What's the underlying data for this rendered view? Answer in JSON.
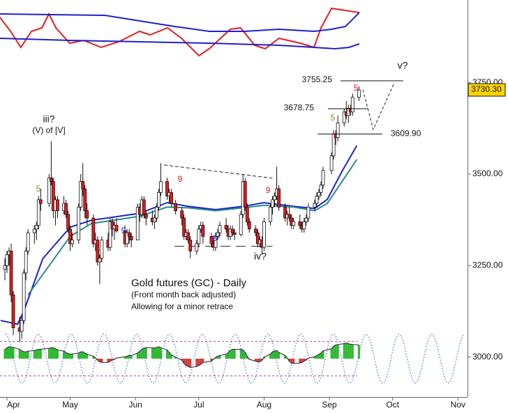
{
  "chart_data": {
    "type": "candlestick",
    "title": "Gold futures (GC) - Daily",
    "subtitle": [
      "(Front month back adjusted)",
      "Allowing for a minor retrace"
    ],
    "xlim": [
      -3.31,
      218.54
    ],
    "ylim": [
      2891,
      3976
    ],
    "xticks": [
      {
        "value": 0,
        "label": "Apr"
      },
      {
        "value": 30,
        "label": "May"
      },
      {
        "value": 61,
        "label": "Jun"
      },
      {
        "value": 91,
        "label": "Jul"
      },
      {
        "value": 122,
        "label": "Aug"
      },
      {
        "value": 153,
        "label": "Sep"
      },
      {
        "value": 183,
        "label": "Oct"
      },
      {
        "value": 214,
        "label": "Nov"
      }
    ],
    "yticks": [
      {
        "value": 3000,
        "label": "3000.00"
      },
      {
        "value": 3250,
        "label": "3250.00"
      },
      {
        "value": 3500,
        "label": "3500.00"
      },
      {
        "value": 3750,
        "label": "3750.00"
      }
    ],
    "last_price": {
      "value": 3730.3,
      "label": "3730.30"
    },
    "up_color": "#ffffff",
    "down_color": "#e41a1c",
    "candles": {
      "x": [
        -1,
        0,
        1,
        2,
        3,
        6,
        7,
        8,
        9,
        10,
        13,
        14,
        15,
        16,
        20,
        21,
        22,
        23,
        24,
        27,
        28,
        29,
        30,
        31,
        34,
        35,
        36,
        37,
        38,
        41,
        42,
        43,
        44,
        45,
        48,
        49,
        50,
        51,
        52,
        56,
        57,
        58,
        59,
        62,
        63,
        64,
        65,
        66,
        69,
        70,
        71,
        72,
        73,
        76,
        77,
        78,
        80,
        83,
        84,
        85,
        86,
        87,
        90,
        91,
        92,
        93,
        97,
        98,
        99,
        100,
        101,
        104,
        105,
        106,
        107,
        108,
        111,
        112,
        113,
        114,
        115,
        118,
        119,
        120,
        121,
        122,
        125,
        126,
        127,
        128,
        129,
        132,
        133,
        134,
        135,
        136,
        139,
        140,
        141,
        142,
        143,
        146,
        147,
        148,
        149,
        150,
        154,
        155,
        156,
        157,
        160,
        161,
        162,
        163,
        164,
        167
      ],
      "ohlc": [
        [
          3240,
          3270,
          3210,
          3250
        ],
        [
          3250,
          3290,
          3230,
          3280
        ],
        [
          3280,
          3300,
          3250,
          3290
        ],
        [
          3290,
          3310,
          3150,
          3170
        ],
        [
          3170,
          3180,
          3060,
          3080
        ],
        [
          3080,
          3110,
          3040,
          3070
        ],
        [
          3070,
          3110,
          3050,
          3100
        ],
        [
          3100,
          3240,
          3090,
          3230
        ],
        [
          3230,
          3300,
          3210,
          3290
        ],
        [
          3290,
          3350,
          3280,
          3340
        ],
        [
          3340,
          3360,
          3310,
          3350
        ],
        [
          3350,
          3370,
          3320,
          3360
        ],
        [
          3360,
          3440,
          3350,
          3430
        ],
        [
          3430,
          3460,
          3400,
          3420
        ],
        [
          3420,
          3500,
          3410,
          3490
        ],
        [
          3490,
          3590,
          3470,
          3480
        ],
        [
          3480,
          3490,
          3380,
          3400
        ],
        [
          3400,
          3440,
          3360,
          3430
        ],
        [
          3430,
          3440,
          3380,
          3400
        ],
        [
          3400,
          3440,
          3390,
          3420
        ],
        [
          3420,
          3430,
          3380,
          3390
        ],
        [
          3390,
          3400,
          3340,
          3350
        ],
        [
          3350,
          3360,
          3290,
          3310
        ],
        [
          3310,
          3340,
          3300,
          3320
        ],
        [
          3320,
          3420,
          3310,
          3410
        ],
        [
          3410,
          3500,
          3400,
          3480
        ],
        [
          3480,
          3530,
          3440,
          3460
        ],
        [
          3460,
          3470,
          3380,
          3400
        ],
        [
          3400,
          3420,
          3360,
          3380
        ],
        [
          3380,
          3390,
          3300,
          3310
        ],
        [
          3310,
          3340,
          3290,
          3320
        ],
        [
          3320,
          3330,
          3250,
          3260
        ],
        [
          3260,
          3280,
          3200,
          3270
        ],
        [
          3270,
          3330,
          3260,
          3320
        ],
        [
          3320,
          3340,
          3290,
          3300
        ],
        [
          3300,
          3380,
          3290,
          3370
        ],
        [
          3370,
          3380,
          3330,
          3350
        ],
        [
          3350,
          3370,
          3320,
          3360
        ],
        [
          3360,
          3380,
          3340,
          3345
        ],
        [
          3345,
          3360,
          3300,
          3310
        ],
        [
          3310,
          3350,
          3300,
          3340
        ],
        [
          3340,
          3350,
          3310,
          3330
        ],
        [
          3330,
          3340,
          3300,
          3320
        ],
        [
          3320,
          3420,
          3320,
          3410
        ],
        [
          3410,
          3420,
          3370,
          3390
        ],
        [
          3390,
          3440,
          3380,
          3430
        ],
        [
          3430,
          3440,
          3380,
          3390
        ],
        [
          3390,
          3400,
          3360,
          3380
        ],
        [
          3380,
          3400,
          3360,
          3370
        ],
        [
          3370,
          3390,
          3350,
          3380
        ],
        [
          3380,
          3420,
          3370,
          3410
        ],
        [
          3410,
          3460,
          3400,
          3450
        ],
        [
          3450,
          3530,
          3440,
          3480
        ],
        [
          3480,
          3490,
          3430,
          3440
        ],
        [
          3440,
          3460,
          3420,
          3450
        ],
        [
          3450,
          3460,
          3410,
          3420
        ],
        [
          3420,
          3430,
          3390,
          3400
        ],
        [
          3400,
          3410,
          3360,
          3380
        ],
        [
          3380,
          3390,
          3320,
          3330
        ],
        [
          3330,
          3350,
          3320,
          3340
        ],
        [
          3340,
          3350,
          3310,
          3320
        ],
        [
          3320,
          3330,
          3270,
          3290
        ],
        [
          3290,
          3320,
          3280,
          3310
        ],
        [
          3310,
          3360,
          3300,
          3350
        ],
        [
          3350,
          3370,
          3340,
          3360
        ],
        [
          3360,
          3370,
          3310,
          3330
        ],
        [
          3330,
          3340,
          3300,
          3310
        ],
        [
          3310,
          3320,
          3290,
          3300
        ],
        [
          3300,
          3340,
          3290,
          3330
        ],
        [
          3330,
          3350,
          3320,
          3340
        ],
        [
          3340,
          3370,
          3330,
          3360
        ],
        [
          3360,
          3380,
          3340,
          3350
        ],
        [
          3350,
          3360,
          3320,
          3330
        ],
        [
          3330,
          3360,
          3320,
          3350
        ],
        [
          3350,
          3360,
          3330,
          3340
        ],
        [
          3340,
          3350,
          3320,
          3335
        ],
        [
          3335,
          3400,
          3330,
          3390
        ],
        [
          3390,
          3500,
          3380,
          3480
        ],
        [
          3480,
          3490,
          3400,
          3410
        ],
        [
          3410,
          3420,
          3360,
          3370
        ],
        [
          3370,
          3380,
          3340,
          3350
        ],
        [
          3350,
          3360,
          3330,
          3340
        ],
        [
          3340,
          3350,
          3300,
          3310
        ],
        [
          3310,
          3330,
          3300,
          3320
        ],
        [
          3320,
          3330,
          3280,
          3300
        ],
        [
          3300,
          3380,
          3290,
          3370
        ],
        [
          3370,
          3420,
          3360,
          3410
        ],
        [
          3410,
          3440,
          3390,
          3430
        ],
        [
          3430,
          3450,
          3410,
          3440
        ],
        [
          3440,
          3520,
          3430,
          3460
        ],
        [
          3460,
          3470,
          3400,
          3410
        ],
        [
          3410,
          3420,
          3370,
          3380
        ],
        [
          3380,
          3400,
          3360,
          3390
        ],
        [
          3390,
          3410,
          3370,
          3380
        ],
        [
          3380,
          3390,
          3350,
          3360
        ],
        [
          3360,
          3380,
          3350,
          3370
        ],
        [
          3370,
          3390,
          3350,
          3360
        ],
        [
          3360,
          3370,
          3340,
          3350
        ],
        [
          3350,
          3380,
          3340,
          3370
        ],
        [
          3370,
          3390,
          3360,
          3380
        ],
        [
          3380,
          3420,
          3370,
          3410
        ],
        [
          3410,
          3430,
          3400,
          3420
        ],
        [
          3420,
          3450,
          3410,
          3440
        ],
        [
          3440,
          3460,
          3430,
          3450
        ],
        [
          3450,
          3480,
          3440,
          3470
        ],
        [
          3470,
          3520,
          3460,
          3510
        ],
        [
          3510,
          3560,
          3500,
          3550
        ],
        [
          3550,
          3620,
          3540,
          3610
        ],
        [
          3610,
          3620,
          3580,
          3600
        ],
        [
          3600,
          3660,
          3590,
          3640
        ],
        [
          3640,
          3680,
          3630,
          3670
        ],
        [
          3670,
          3700,
          3650,
          3660
        ],
        [
          3660,
          3690,
          3640,
          3680
        ],
        [
          3680,
          3690,
          3660,
          3670
        ],
        [
          3670,
          3720,
          3660,
          3710
        ],
        [
          3710,
          3740,
          3700,
          3730
        ]
      ]
    },
    "lines": [
      {
        "color": "#1f1fcc",
        "x": [
          -3,
          5,
          8,
          17,
          30,
          40,
          63,
          76,
          86,
          99,
          112,
          122,
          136,
          146,
          152,
          159,
          166
        ],
        "values": [
          3100,
          3090,
          3126,
          3269,
          3355,
          3374,
          3393,
          3422,
          3412,
          3403,
          3412,
          3422,
          3412,
          3406,
          3431,
          3508,
          3578
        ]
      },
      {
        "color": "#2a8c8c",
        "x": [
          10,
          20,
          30,
          40,
          63,
          76,
          86,
          99,
          112,
          122,
          136,
          146,
          152,
          159,
          166
        ],
        "values": [
          3170,
          3250,
          3330,
          3365,
          3385,
          3410,
          3408,
          3400,
          3408,
          3415,
          3410,
          3400,
          3420,
          3480,
          3540
        ]
      }
    ],
    "levels": [
      {
        "value": 3755.25,
        "label": "3755.25",
        "x": [
          158.3,
          188
        ]
      },
      {
        "value": 3678.75,
        "label": "3678.75",
        "x": [
          152.3,
          171.5
        ]
      },
      {
        "value": 3609.9,
        "label": "3609.90",
        "x": [
          147.4,
          178.1
        ]
      }
    ],
    "projection": {
      "x": [
        168.9,
        173.8,
        183.8
      ],
      "values": [
        3731,
        3622,
        3750
      ]
    },
    "trendlines": [
      {
        "x": [
          74.5,
          126
        ],
        "values": [
          3525,
          3489
        ]
      },
      {
        "x": [
          79.5,
          126
        ],
        "values": [
          3303,
          3303
        ]
      }
    ],
    "annotations": [
      "iii?",
      "(V) of [V]",
      "5",
      "9",
      "9",
      "8*",
      "9",
      "iv?",
      "5",
      "5",
      "v?"
    ],
    "indicator": {
      "ylim": [
        0,
        100
      ],
      "lines": [
        {
          "color": "#e02020",
          "x": [
            -3.3,
            1.7,
            6.6,
            11.6,
            16.6,
            19.9,
            23.2,
            29.8,
            36.4,
            44.7,
            53,
            62.9,
            67.9,
            76.2,
            82.8,
            91.1,
            96,
            106,
            110.9,
            117.5,
            122.5,
            129.1,
            139.1,
            145.7,
            149,
            154,
            160.6,
            167.2
          ],
          "values": [
            75,
            55,
            32,
            55,
            60,
            80,
            60,
            38,
            42,
            32,
            40,
            55,
            50,
            60,
            45,
            20,
            30,
            58,
            60,
            35,
            30,
            45,
            38,
            32,
            60,
            88,
            85,
            82
          ]
        },
        {
          "color": "#1f1fcc",
          "x": [
            -3.3,
            46.4,
            62.9,
            79.5,
            96,
            112.6,
            129.1,
            145.7,
            154,
            160.6,
            167.2
          ],
          "values": [
            80,
            78,
            70,
            62,
            55,
            55,
            58,
            55,
            58,
            62,
            82
          ]
        },
        {
          "color": "#1f1fcc",
          "x": [
            -3.3,
            29.8,
            62.9,
            96,
            129.1,
            145.7,
            155.6,
            162.3,
            167.2
          ],
          "values": [
            45,
            42,
            40,
            38,
            35,
            32,
            30,
            32,
            37
          ]
        }
      ]
    },
    "oscillator": {
      "ylim": [
        -100,
        100
      ],
      "pos_color": "#2db82d",
      "neg_color": "#d43a3a",
      "values": [
        30,
        35,
        38,
        38,
        36,
        30,
        25,
        22,
        22,
        24,
        26,
        28,
        30,
        30,
        33,
        35,
        35,
        32,
        28,
        24,
        20,
        16,
        15,
        15,
        18,
        22,
        22,
        18,
        14,
        8,
        2,
        -5,
        -10,
        -12,
        -12,
        -8,
        -5,
        -2,
        2,
        6,
        8,
        10,
        10,
        18,
        24,
        30,
        34,
        35,
        35,
        34,
        36,
        38,
        35,
        28,
        20,
        12,
        5,
        -5,
        -15,
        -22,
        -25,
        -28,
        -25,
        -22,
        -18,
        -12,
        -8,
        -2,
        4,
        8,
        10,
        14,
        20,
        26,
        30,
        30,
        30,
        28,
        20,
        8,
        -2,
        -8,
        -10,
        -10,
        -5,
        5,
        15,
        22,
        25,
        26,
        20,
        10,
        2,
        -8,
        -15,
        -15,
        -14,
        -12,
        -8,
        -4,
        2,
        6,
        10,
        14,
        18,
        25,
        32,
        40,
        44,
        45,
        48,
        50,
        48,
        46,
        45,
        44
      ],
      "levels": [
        55,
        -55
      ],
      "cycle": {
        "color": "#3a6fd0",
        "x": [
          -0.7,
          7.1,
          14.9,
          22.7,
          30.5,
          38.2,
          46.0,
          53.8,
          61.6,
          69.4,
          77.1,
          84.9,
          92.7,
          100.5,
          108.3,
          116.0,
          123.8,
          131.6,
          139.4,
          147.2,
          154.9,
          162.7,
          170.5,
          178.3,
          186.1,
          193.8,
          201.6,
          209.4,
          217.2
        ],
        "values": [
          78,
          -78,
          78,
          -78,
          78,
          -78,
          78,
          -78,
          78,
          -78,
          78,
          -78,
          78,
          -78,
          78,
          -78,
          78,
          -78,
          78,
          -78,
          78,
          -78,
          78,
          -78,
          78,
          -78,
          78,
          -78,
          78
        ]
      }
    }
  }
}
